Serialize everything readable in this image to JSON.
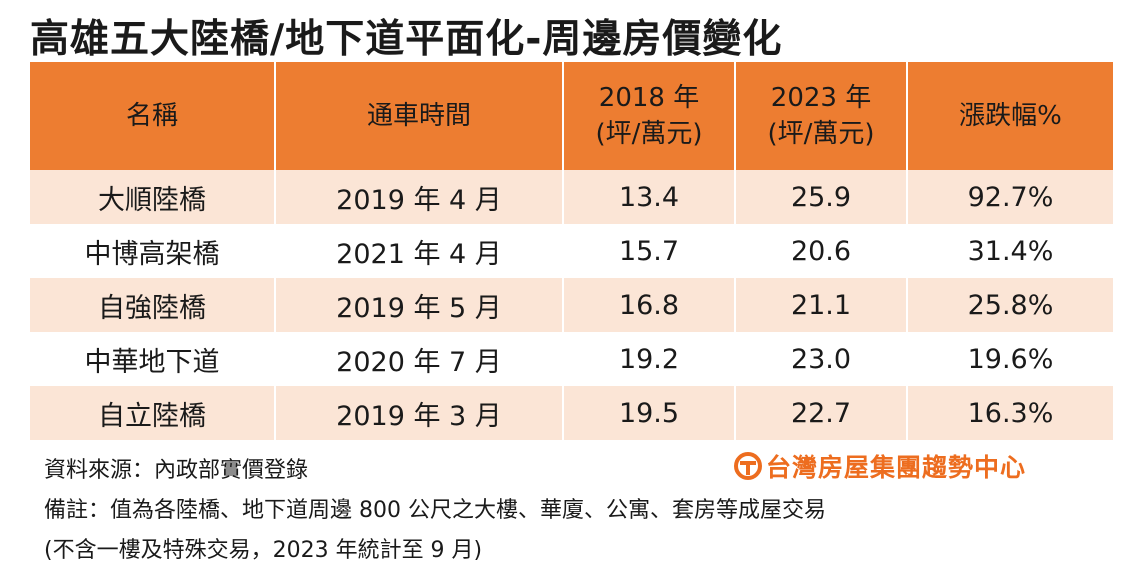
{
  "title": "高雄五大陸橋/地下道平面化-周邊房價變化",
  "colors": {
    "header_bg": "#ed7d31",
    "stripe_bg": "#fbe5d6",
    "logo": "#ed6d1f"
  },
  "table": {
    "headers": {
      "name": "名稱",
      "open_date": "通車時間",
      "y2018_line1": "2018 年",
      "y2018_line2": "(坪/萬元)",
      "y2023_line1": "2023 年",
      "y2023_line2": "(坪/萬元)",
      "change": "漲跌幅%"
    },
    "rows": [
      {
        "name": "大順陸橋",
        "open_date": "2019 年 4 月",
        "price_2018": "13.4",
        "price_2023": "25.9",
        "change": "92.7%"
      },
      {
        "name": "中博高架橋",
        "open_date": "2021 年 4 月",
        "price_2018": "15.7",
        "price_2023": "20.6",
        "change": "31.4%"
      },
      {
        "name": "自強陸橋",
        "open_date": "2019 年 5 月",
        "price_2018": "16.8",
        "price_2023": "21.1",
        "change": "25.8%"
      },
      {
        "name": "中華地下道",
        "open_date": "2020 年 7 月",
        "price_2018": "19.2",
        "price_2023": "23.0",
        "change": "19.6%"
      },
      {
        "name": "自立陸橋",
        "open_date": "2019 年 3 月",
        "price_2018": "19.5",
        "price_2023": "22.7",
        "change": "16.3%"
      }
    ]
  },
  "footer": {
    "source": "資料來源：內政部實價登錄",
    "note": "備註：值為各陸橋、地下道周邊 800 公尺之大樓、華廈、公寓、套房等成屋交易",
    "note2": "(不含一樓及特殊交易，2023 年統計至 9 月)",
    "logo_text": "台灣房屋集團趨勢中心",
    "logo_icon": "taiwan-realty-logo-icon"
  }
}
